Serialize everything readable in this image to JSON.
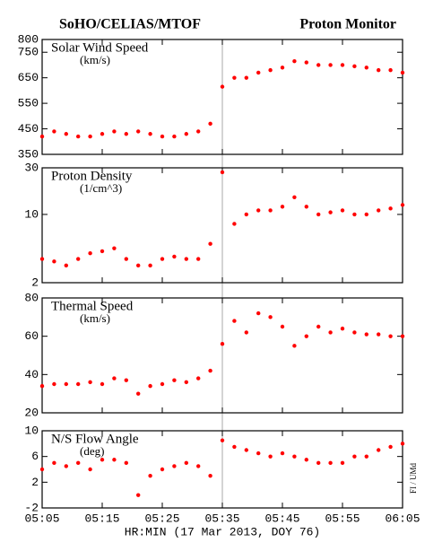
{
  "title": "SoHO/CELIAS/MTOF",
  "subtitle": "Proton Monitor",
  "xlabel": "HR:MIN (17 Mar 2013, DOY 76)",
  "side_note": "FI / UMd",
  "chart_data": [
    {
      "type": "scatter",
      "label": "Solar Wind Speed",
      "unit": "(km/s)",
      "color": "#ff0000",
      "x": [
        "05:05",
        "05:07",
        "05:09",
        "05:11",
        "05:13",
        "05:15",
        "05:17",
        "05:19",
        "05:21",
        "05:23",
        "05:25",
        "05:27",
        "05:29",
        "05:31",
        "05:33",
        "05:35",
        "05:37",
        "05:39",
        "05:41",
        "05:43",
        "05:45",
        "05:47",
        "05:49",
        "05:51",
        "05:53",
        "05:55",
        "05:57",
        "05:59",
        "06:01",
        "06:03",
        "06:05"
      ],
      "values": [
        420,
        440,
        430,
        420,
        420,
        430,
        440,
        430,
        440,
        430,
        420,
        420,
        430,
        440,
        470,
        615,
        650,
        650,
        670,
        680,
        690,
        715,
        710,
        700,
        700,
        700,
        695,
        690,
        680,
        680,
        670
      ],
      "xlim": [
        "05:05",
        "06:05"
      ],
      "xticks": [
        "05:05",
        "05:15",
        "05:25",
        "05:35",
        "05:45",
        "05:55",
        "06:05"
      ],
      "ylim": [
        350,
        800
      ],
      "yticks": [
        350,
        450,
        550,
        650,
        750,
        800
      ]
    },
    {
      "type": "scatter",
      "label": "Proton Density",
      "unit": "(1/cm^3)",
      "color": "#ff0000",
      "log": true,
      "x": [
        "05:05",
        "05:07",
        "05:09",
        "05:11",
        "05:13",
        "05:15",
        "05:17",
        "05:19",
        "05:21",
        "05:23",
        "05:25",
        "05:27",
        "05:29",
        "05:31",
        "05:33",
        "05:35",
        "05:37",
        "05:39",
        "05:41",
        "05:43",
        "05:45",
        "05:47",
        "05:49",
        "05:51",
        "05:53",
        "05:55",
        "05:57",
        "05:59",
        "06:01",
        "06:03",
        "06:05"
      ],
      "values": [
        3.5,
        3.3,
        3,
        3.5,
        4,
        4.2,
        4.5,
        3.5,
        3,
        3,
        3.5,
        3.7,
        3.5,
        3.5,
        5,
        27,
        8,
        10,
        11,
        11,
        12,
        15,
        12,
        10,
        10.5,
        11,
        10,
        10,
        11,
        11.5,
        12.5
      ],
      "xlim": [
        "05:05",
        "06:05"
      ],
      "xticks": [
        "05:05",
        "05:15",
        "05:25",
        "05:35",
        "05:45",
        "05:55",
        "06:05"
      ],
      "ylim": [
        2,
        30
      ],
      "yticks": [
        2,
        10,
        30
      ]
    },
    {
      "type": "scatter",
      "label": "Thermal Speed",
      "unit": "(km/s)",
      "color": "#ff0000",
      "x": [
        "05:05",
        "05:07",
        "05:09",
        "05:11",
        "05:13",
        "05:15",
        "05:17",
        "05:19",
        "05:21",
        "05:23",
        "05:25",
        "05:27",
        "05:29",
        "05:31",
        "05:33",
        "05:35",
        "05:37",
        "05:39",
        "05:41",
        "05:43",
        "05:45",
        "05:47",
        "05:49",
        "05:51",
        "05:53",
        "05:55",
        "05:57",
        "05:59",
        "06:01",
        "06:03",
        "06:05"
      ],
      "values": [
        34,
        35,
        35,
        35,
        36,
        35,
        38,
        37,
        30,
        34,
        35,
        37,
        36,
        38,
        42,
        56,
        68,
        62,
        72,
        70,
        65,
        55,
        60,
        65,
        62,
        64,
        62,
        61,
        61,
        60,
        60
      ],
      "xlim": [
        "05:05",
        "06:05"
      ],
      "xticks": [
        "05:05",
        "05:15",
        "05:25",
        "05:35",
        "05:45",
        "05:55",
        "06:05"
      ],
      "ylim": [
        20,
        80
      ],
      "yticks": [
        20,
        40,
        60,
        80
      ]
    },
    {
      "type": "scatter",
      "label": "N/S Flow Angle",
      "unit": "(deg)",
      "color": "#ff0000",
      "x": [
        "05:05",
        "05:07",
        "05:09",
        "05:11",
        "05:13",
        "05:15",
        "05:17",
        "05:19",
        "05:21",
        "05:23",
        "05:25",
        "05:27",
        "05:29",
        "05:31",
        "05:33",
        "05:35",
        "05:37",
        "05:39",
        "05:41",
        "05:43",
        "05:45",
        "05:47",
        "05:49",
        "05:51",
        "05:53",
        "05:55",
        "05:57",
        "05:59",
        "06:01",
        "06:03",
        "06:05"
      ],
      "values": [
        4,
        5,
        4.5,
        5,
        4,
        5.5,
        5.5,
        5,
        0,
        3,
        4,
        4.5,
        5,
        4.5,
        3,
        8.5,
        7.5,
        7,
        6.5,
        6,
        6.5,
        6,
        5.5,
        5,
        5,
        5,
        6,
        6,
        7,
        7.5,
        8
      ],
      "xlim": [
        "05:05",
        "06:05"
      ],
      "xticks": [
        "05:05",
        "05:15",
        "05:25",
        "05:35",
        "05:45",
        "05:55",
        "06:05"
      ],
      "ylim": [
        -2,
        10
      ],
      "yticks": [
        -2,
        2,
        6,
        10
      ]
    }
  ]
}
